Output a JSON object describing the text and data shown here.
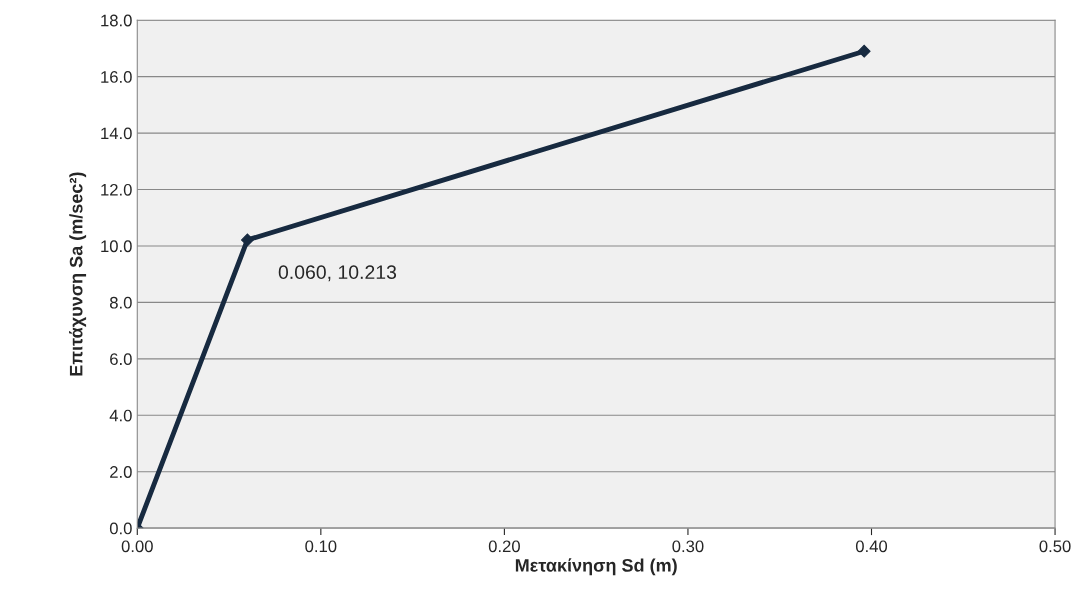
{
  "chart_data": {
    "type": "line",
    "xlabel": "Μετακίνηση Sd (m)",
    "ylabel": "Επιτάχυνση Sa (m/sec²)",
    "x": [
      0.0,
      0.06,
      0.396
    ],
    "series": [
      {
        "color": "#172a40",
        "values": [
          0.0,
          10.213,
          16.9
        ]
      }
    ],
    "marker": "diamond",
    "line_style": "solid",
    "xlim": [
      0,
      0.5
    ],
    "ylim": [
      0,
      18
    ],
    "xticks": [
      {
        "value": 0,
        "label": "0.00"
      },
      {
        "value": 0.1,
        "label": "0.10"
      },
      {
        "value": 0.2,
        "label": "0.20"
      },
      {
        "value": 0.3,
        "label": "0.30"
      },
      {
        "value": 0.4,
        "label": "0.40"
      },
      {
        "value": 0.5,
        "label": "0.50"
      }
    ],
    "yticks": [
      {
        "value": 0,
        "label": "0.0"
      },
      {
        "value": 2,
        "label": "2.0"
      },
      {
        "value": 4,
        "label": "4.0"
      },
      {
        "value": 6,
        "label": "6.0"
      },
      {
        "value": 8,
        "label": "8.0"
      },
      {
        "value": 10,
        "label": "10.0"
      },
      {
        "value": 12,
        "label": "12.0"
      },
      {
        "value": 14,
        "label": "14.0"
      },
      {
        "value": 16,
        "label": "16.0"
      },
      {
        "value": 18,
        "label": "18.0"
      }
    ],
    "grid": "y",
    "annotations": [
      {
        "text": "0.060, 10.213",
        "x": 0.06,
        "y": 10.213
      }
    ]
  }
}
